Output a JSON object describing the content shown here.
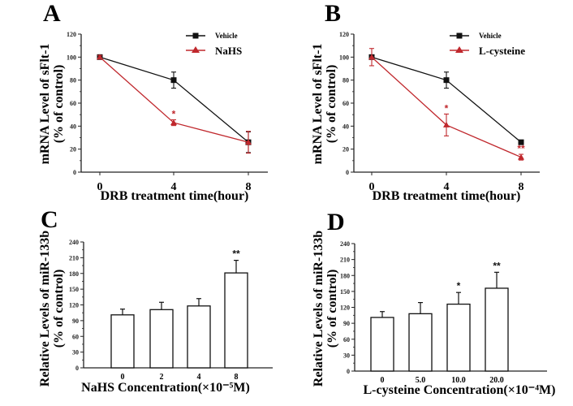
{
  "chart_data": [
    {
      "id": "A",
      "panel_label": "A",
      "type": "line",
      "ylabel_line1": "mRNA Level of sFlt-1",
      "ylabel_line2": "(% of control)",
      "xlabel": "DRB treatment time(hour)",
      "x": [
        0,
        4,
        8
      ],
      "x_tick_labels": [
        "0",
        "4",
        "8"
      ],
      "ylim": [
        0,
        120
      ],
      "y_ticks": [
        0,
        20,
        40,
        60,
        80,
        100,
        120
      ],
      "legend_position": "top-right",
      "series": [
        {
          "name": "Vehicle",
          "color": "#111111",
          "marker": "square",
          "values": [
            100,
            80,
            26
          ],
          "errors": [
            1.5,
            7,
            9
          ],
          "annotations": [
            "",
            "",
            ""
          ]
        },
        {
          "name": "NaHS",
          "color": "#c0282d",
          "marker": "triangle",
          "values": [
            100,
            43,
            26
          ],
          "errors": [
            1.5,
            2.5,
            9.5
          ],
          "annotations": [
            "",
            "*",
            ""
          ]
        }
      ]
    },
    {
      "id": "B",
      "panel_label": "B",
      "type": "line",
      "ylabel_line1": "mRNA Level of sFlt-1",
      "ylabel_line2": "(% of control)",
      "xlabel": "DRB treatment time(hour)",
      "x": [
        0,
        4,
        8
      ],
      "x_tick_labels": [
        "0",
        "4",
        "8"
      ],
      "ylim": [
        0,
        120
      ],
      "y_ticks": [
        0,
        20,
        40,
        60,
        80,
        100,
        120
      ],
      "legend_position": "top-right",
      "series": [
        {
          "name": "Vehicle",
          "color": "#111111",
          "marker": "square",
          "values": [
            100,
            80,
            26
          ],
          "errors": [
            1.5,
            7,
            1
          ],
          "annotations": [
            "",
            "",
            ""
          ]
        },
        {
          "name": "L-cysteine",
          "color": "#c0282d",
          "marker": "triangle",
          "values": [
            100,
            41,
            13
          ],
          "errors": [
            7.5,
            9.5,
            2.5
          ],
          "annotations": [
            "",
            "*",
            "**"
          ]
        }
      ]
    },
    {
      "id": "C",
      "panel_label": "C",
      "type": "bar",
      "ylabel_line1": "Relative Levels of miR-133b",
      "ylabel_line2": "(% of control)",
      "xlabel": "NaHS Concentration(×10⁻⁵M)",
      "categories": [
        "0",
        "2",
        "4",
        "8"
      ],
      "values": [
        101,
        111,
        118,
        181
      ],
      "errors": [
        11,
        14,
        14,
        24
      ],
      "annotations": [
        "",
        "",
        "",
        "**"
      ],
      "ylim": [
        0,
        240
      ],
      "y_ticks": [
        0,
        30,
        60,
        90,
        120,
        150,
        180,
        210,
        240
      ]
    },
    {
      "id": "D",
      "panel_label": "D",
      "type": "bar",
      "ylabel_line1": "Relative Levels of miR-133b",
      "ylabel_line2": "(% of control)",
      "xlabel": "L-cysteine Concentration(×10⁻⁴M)",
      "categories": [
        "0",
        "5.0",
        "10.0",
        "20.0"
      ],
      "values": [
        101,
        108,
        126,
        156
      ],
      "errors": [
        11,
        21,
        22,
        30
      ],
      "annotations": [
        "",
        "",
        "*",
        "**"
      ],
      "ylim": [
        0,
        240
      ],
      "y_ticks": [
        0,
        30,
        60,
        90,
        120,
        150,
        180,
        210,
        240
      ]
    }
  ]
}
